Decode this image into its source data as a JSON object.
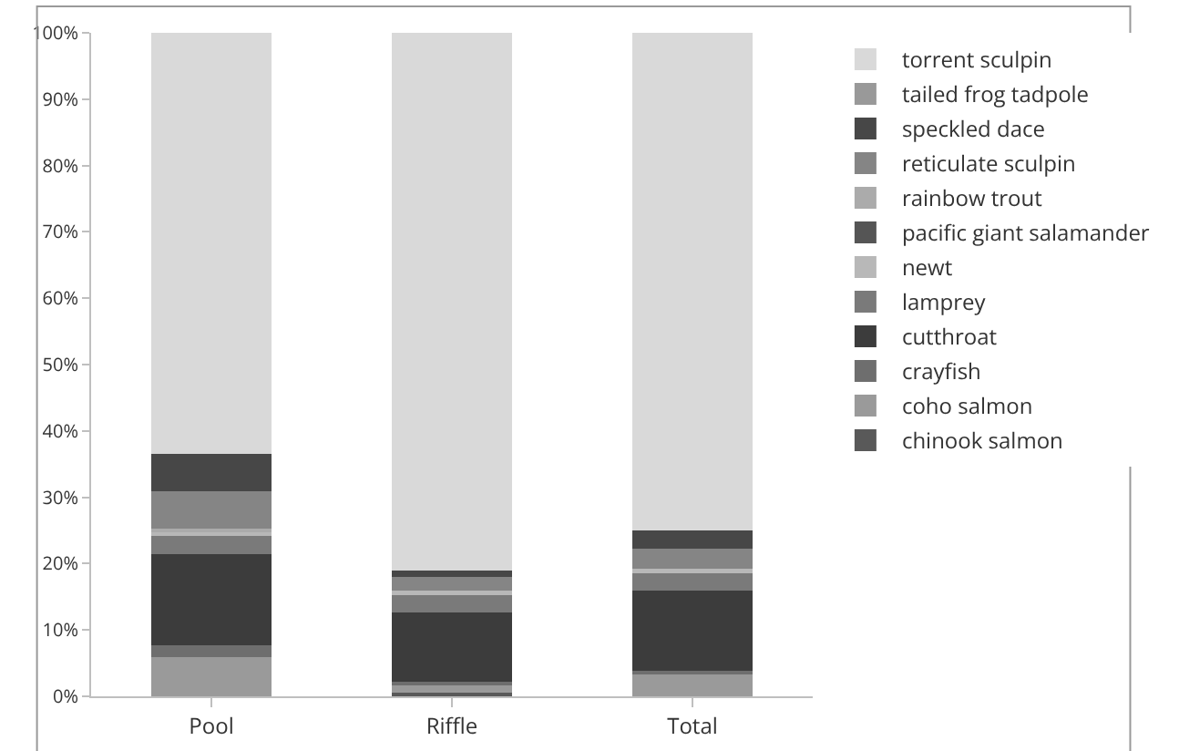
{
  "chart_data": {
    "type": "bar",
    "stacked": true,
    "categories": [
      "Pool",
      "Riffle",
      "Total"
    ],
    "series": [
      {
        "name": "chinook salmon",
        "color": "#595959",
        "values": [
          0,
          0.5,
          null
        ]
      },
      {
        "name": "coho salmon",
        "color": "#9a9a9a",
        "values": [
          5.9,
          1.2,
          3.3
        ]
      },
      {
        "name": "crayfish",
        "color": "#6e6e6e",
        "values": [
          1.8,
          0.5,
          0.5
        ]
      },
      {
        "name": "cutthroat",
        "color": "#3c3c3c",
        "values": [
          13.7,
          10.4,
          12.2
        ]
      },
      {
        "name": "lamprey",
        "color": "#7a7a7a",
        "values": [
          2.9,
          2.6,
          2.6
        ]
      },
      {
        "name": "newt",
        "color": "#b8b8b8",
        "values": [
          0.5,
          0.7,
          0.6
        ]
      },
      {
        "name": "pacific giant salamander",
        "color": "#555555",
        "values": [
          0,
          0,
          0
        ]
      },
      {
        "name": "rainbow trout",
        "color": "#ababab",
        "values": [
          0.5,
          0,
          0
        ]
      },
      {
        "name": "reticulate sculpin",
        "color": "#858585",
        "values": [
          5.6,
          2.1,
          3.0
        ]
      },
      {
        "name": "speckled dace",
        "color": "#474747",
        "values": [
          5.6,
          0.9,
          2.8
        ]
      },
      {
        "name": "tailed frog tadpole",
        "color": "#999999",
        "values": [
          0,
          0,
          0
        ]
      },
      {
        "name": "torrent sculpin",
        "color": "#d9d9d9",
        "values": [
          63.5,
          81.1,
          75.0
        ]
      }
    ],
    "ylim": [
      0,
      100
    ],
    "yticks": [
      {
        "value": 0,
        "label": "0%"
      },
      {
        "value": 10,
        "label": "10%"
      },
      {
        "value": 20,
        "label": "20%"
      },
      {
        "value": 30,
        "label": "30%"
      },
      {
        "value": 40,
        "label": "40%"
      },
      {
        "value": 50,
        "label": "50%"
      },
      {
        "value": 60,
        "label": "60%"
      },
      {
        "value": 70,
        "label": "70%"
      },
      {
        "value": 80,
        "label": "80%"
      },
      {
        "value": 90,
        "label": "90%"
      },
      {
        "value": 100,
        "label": "100%"
      }
    ],
    "grid": false,
    "legend": "right"
  }
}
